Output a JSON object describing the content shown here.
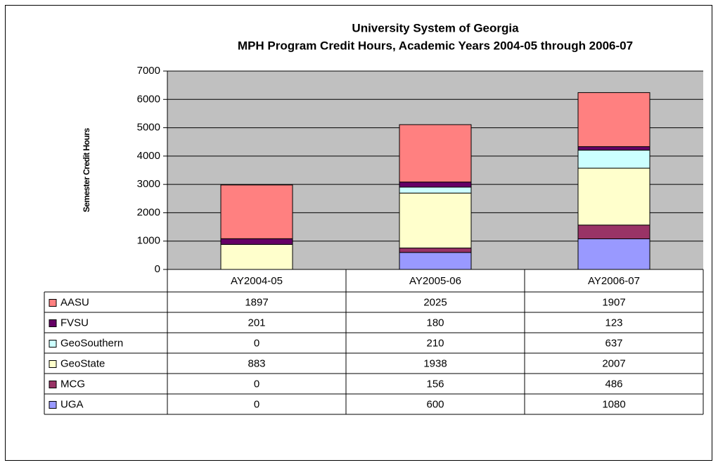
{
  "chart_data": {
    "type": "stacked_bar",
    "title": "University System of Georgia",
    "subtitle": "MPH Program Credit Hours, Academic Years 2004-05 through 2006-07",
    "y_label": "Semester Credit Hours",
    "categories": [
      "AY2004-05",
      "AY2005-06",
      "AY2006-07"
    ],
    "series": [
      {
        "name": "AASU",
        "color": "#ff8080",
        "values": [
          1897,
          2025,
          1907
        ]
      },
      {
        "name": "FVSU",
        "color": "#660066",
        "values": [
          201,
          180,
          123
        ]
      },
      {
        "name": "GeoSouthern",
        "color": "#ccffff",
        "values": [
          0,
          210,
          637
        ]
      },
      {
        "name": "GeoState",
        "color": "#ffffcc",
        "values": [
          883,
          1938,
          2007
        ]
      },
      {
        "name": "MCG",
        "color": "#993366",
        "values": [
          0,
          156,
          486
        ]
      },
      {
        "name": "UGA",
        "color": "#9999ff",
        "values": [
          0,
          600,
          1080
        ]
      }
    ],
    "ylim": [
      0,
      7000
    ],
    "yticks": [
      0,
      1000,
      2000,
      3000,
      4000,
      5000,
      6000,
      7000
    ],
    "grid": true,
    "plot_background": "#c0c0c0"
  }
}
